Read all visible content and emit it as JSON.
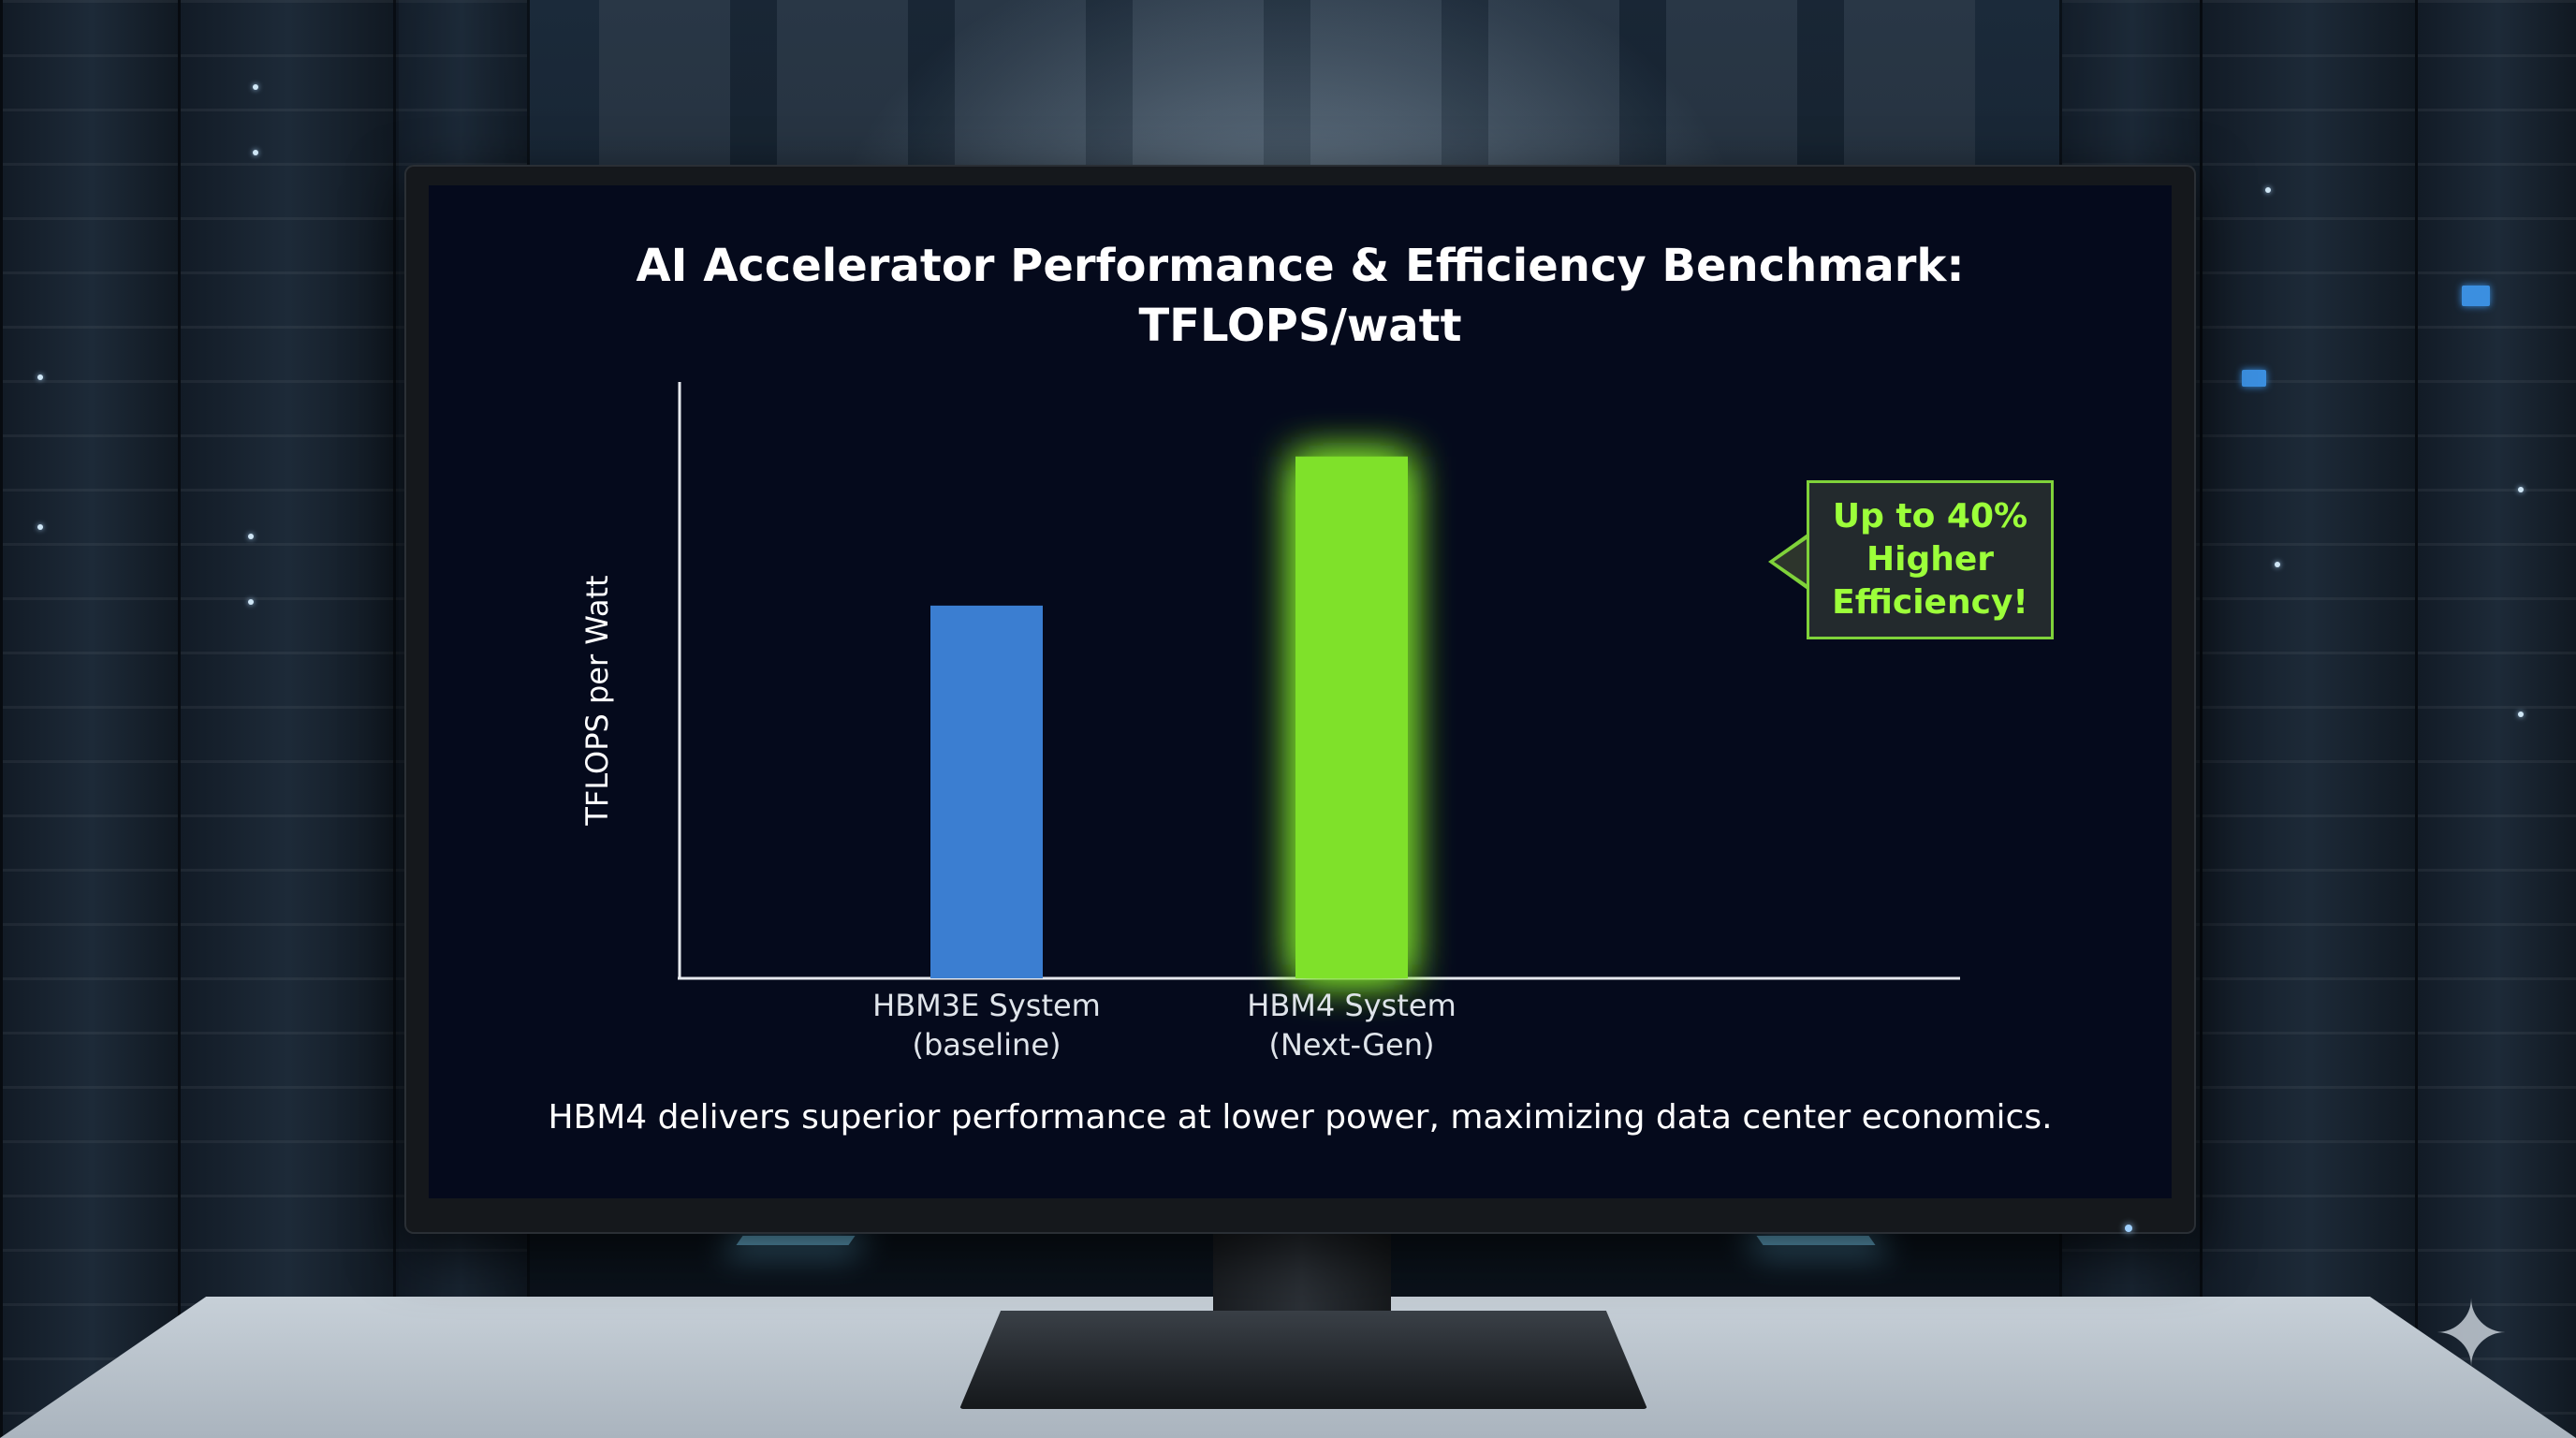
{
  "chart_data": {
    "type": "bar",
    "title": "AI Accelerator Performance & Efficiency Benchmark:",
    "subtitle": "TFLOPS/watt",
    "ylabel": "TFLOPS per Watt",
    "xlabel": "",
    "categories": [
      {
        "line1": "HBM3E System",
        "line2": "(baseline)"
      },
      {
        "line1": "HBM4 System",
        "line2": "(Next-Gen)"
      }
    ],
    "values": [
      1.0,
      1.4
    ],
    "ylim": [
      0,
      1.6
    ],
    "grid": false,
    "colors": [
      "#3b7ed1",
      "#7fe12a"
    ],
    "annotation": {
      "lines": [
        "Up to 40%",
        "Higher",
        "Efficiency!"
      ],
      "target": "HBM4 System"
    },
    "footnote": "HBM4 delivers superior performance at lower power, maximizing data center economics."
  }
}
